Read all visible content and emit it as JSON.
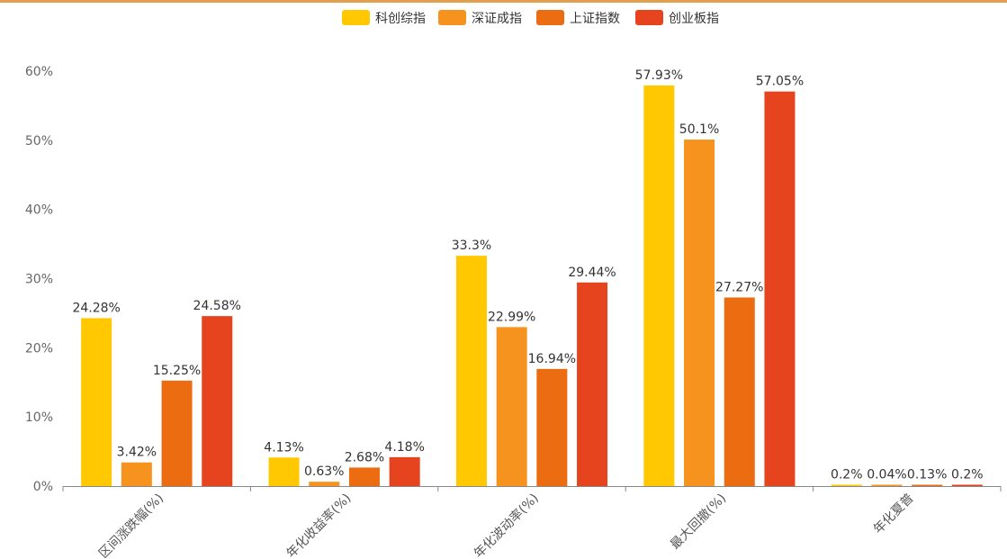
{
  "chart_data": {
    "type": "bar",
    "categories": [
      "区间涨跌幅(%)",
      "年化收益率(%)",
      "年化波动率(%)",
      "最大回撤(%)",
      "年化夏普"
    ],
    "series": [
      {
        "name": "科创综指",
        "color": "#ffc800",
        "values": [
          24.28,
          4.13,
          33.3,
          57.93,
          0.2
        ],
        "labels": [
          "24.28%",
          "4.13%",
          "33.3%",
          "57.93%",
          "0.2%"
        ]
      },
      {
        "name": "深证成指",
        "color": "#f5931e",
        "values": [
          3.42,
          0.63,
          22.99,
          50.1,
          0.04
        ],
        "labels": [
          "3.42%",
          "0.63%",
          "22.99%",
          "50.1%",
          "0.04%"
        ]
      },
      {
        "name": "上证指数",
        "color": "#ec6c12",
        "values": [
          15.25,
          2.68,
          16.94,
          27.27,
          0.13
        ],
        "labels": [
          "15.25%",
          "2.68%",
          "16.94%",
          "27.27%",
          "0.13%"
        ]
      },
      {
        "name": "创业板指",
        "color": "#e5441f",
        "values": [
          24.58,
          4.18,
          29.44,
          57.05,
          0.2
        ],
        "labels": [
          "24.58%",
          "4.18%",
          "29.44%",
          "57.05%",
          "0.2%"
        ]
      }
    ],
    "yticks": [
      "0%",
      "10%",
      "20%",
      "30%",
      "40%",
      "50%",
      "60%"
    ],
    "ylim": [
      0,
      60
    ],
    "title": "",
    "xlabel": "",
    "ylabel": "",
    "grid": false,
    "legend": "top-center"
  }
}
